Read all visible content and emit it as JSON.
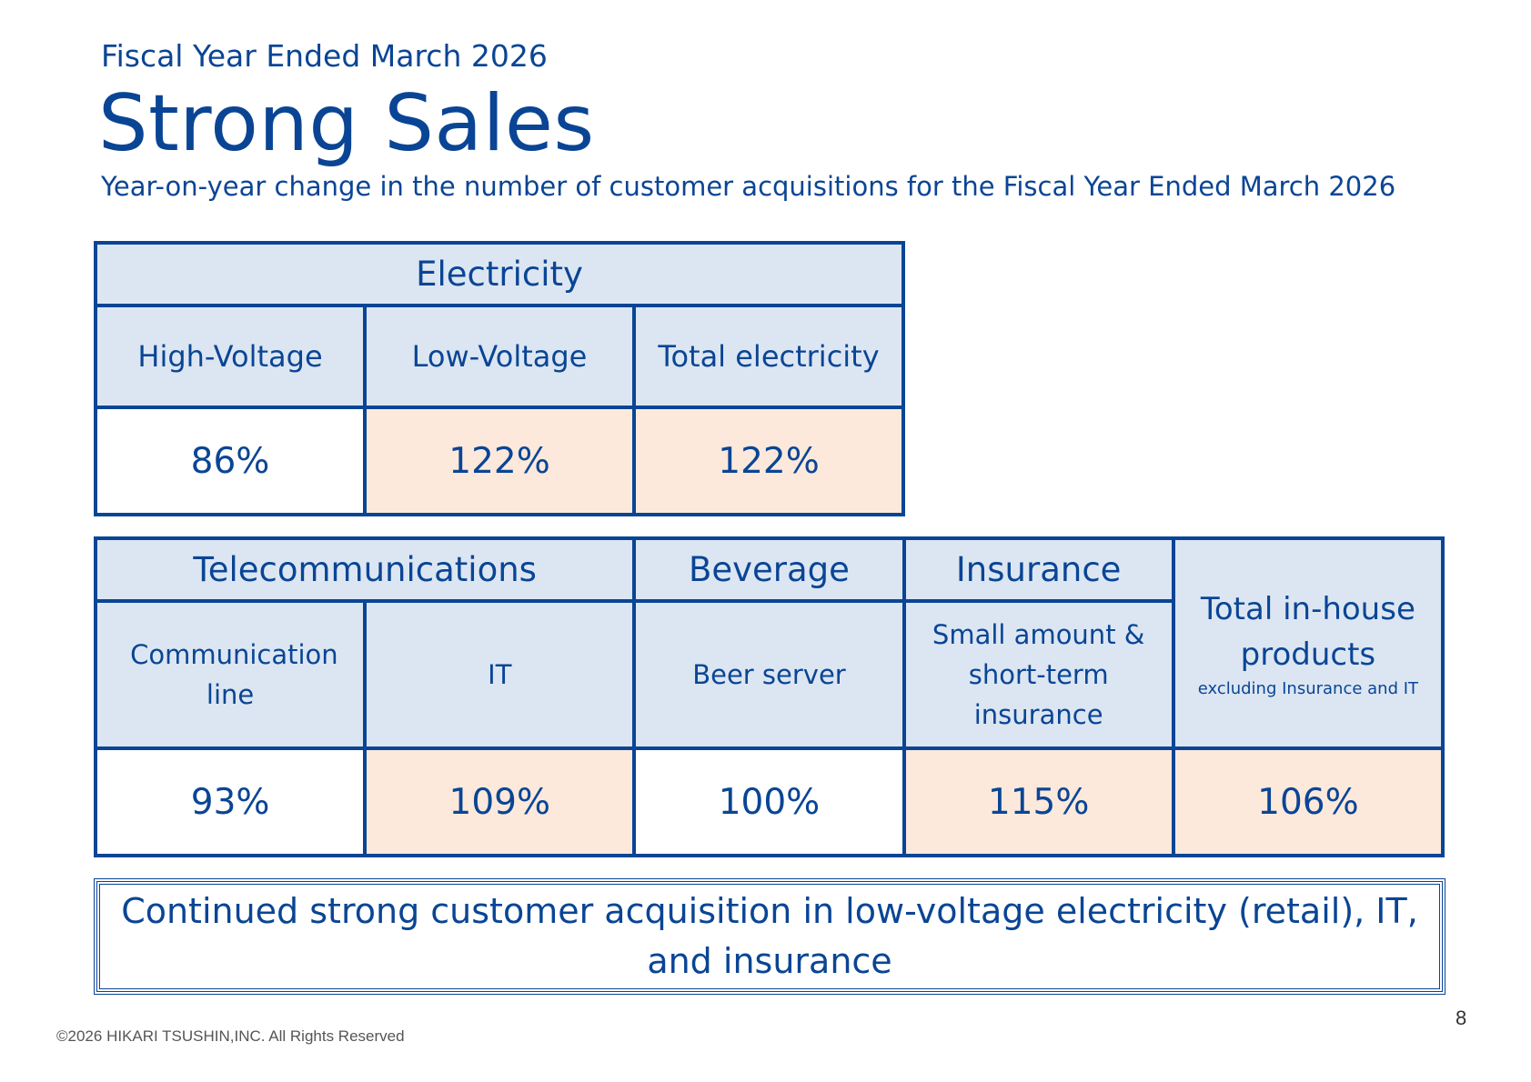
{
  "header": {
    "subtitle": "Fiscal Year Ended March 2026",
    "title": "Strong Sales",
    "description": "Year-on-year change in the number of customer acquisitions for the Fiscal Year Ended March 2026"
  },
  "electricity": {
    "category": "Electricity",
    "columns": [
      "High-Voltage",
      "Low-Voltage",
      "Total electricity"
    ],
    "values": [
      "86%",
      "122%",
      "122%"
    ]
  },
  "other": {
    "telecom": "Telecommunications",
    "beverage": "Beverage",
    "insurance": "Insurance",
    "total_label": "Total in-house products",
    "total_note": "excluding Insurance and IT",
    "columns": [
      "Communication line",
      "IT",
      "Beer server",
      "Small amount & short-term insurance"
    ],
    "values": [
      "93%",
      "109%",
      "100%",
      "115%",
      "106%"
    ]
  },
  "summary": "Continued strong customer acquisition in low-voltage electricity (retail), IT, and insurance",
  "footer": {
    "copyright": "©2026 HIKARI TSUSHIN,INC. All Rights Reserved",
    "page": "8"
  },
  "colors": {
    "text": "#0a4595",
    "header_fill": "#dce6f2",
    "highlight_fill": "#fce9dc"
  }
}
